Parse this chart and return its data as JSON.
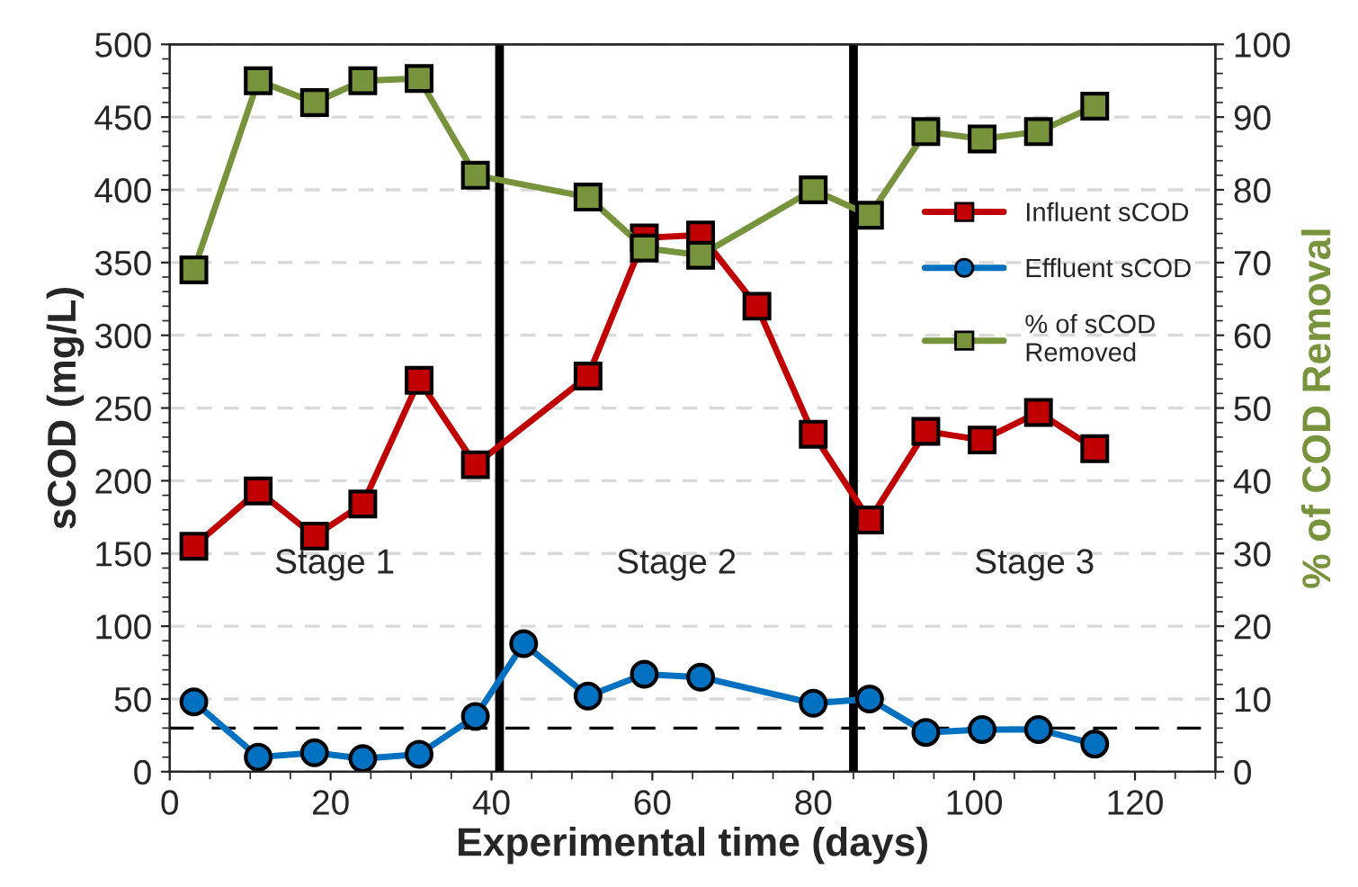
{
  "chart_data": {
    "type": "line",
    "xlabel": "Experimental time (days)",
    "ylabel": "sCOD (mg/L)",
    "y2label": "% of COD Removal",
    "xlim": [
      0,
      130
    ],
    "xticks": [
      0,
      20,
      40,
      60,
      80,
      100,
      120
    ],
    "ylim": [
      0,
      500
    ],
    "yticks": [
      0,
      50,
      100,
      150,
      200,
      250,
      300,
      350,
      400,
      450,
      500
    ],
    "y2lim": [
      0,
      100
    ],
    "y2ticks": [
      0,
      10,
      20,
      30,
      40,
      50,
      60,
      70,
      80,
      90,
      100
    ],
    "grid": "y",
    "legend": "right",
    "line_style": "solid",
    "series": [
      {
        "name": "Influent sCOD",
        "color": "#c00000",
        "marker": "square",
        "x": [
          3,
          11,
          18,
          24,
          31,
          38,
          52,
          59,
          66,
          73,
          80,
          87,
          94,
          101,
          108,
          115
        ],
        "values": [
          155,
          193,
          162,
          184,
          269,
          211,
          272,
          367,
          369,
          320,
          232,
          173,
          234,
          228,
          247,
          222
        ]
      },
      {
        "name": "Effluent sCOD",
        "color": "#0070c0",
        "marker": "circle",
        "x": [
          3,
          11,
          18,
          24,
          31,
          38,
          44,
          52,
          59,
          66,
          80,
          87,
          94,
          101,
          108,
          115
        ],
        "values": [
          48,
          10,
          13,
          9,
          12,
          38,
          88,
          52,
          67,
          65,
          47,
          50,
          27,
          29,
          29,
          19
        ]
      },
      {
        "name": "% of sCOD Removed",
        "color": "#77933c",
        "marker": "square",
        "axis": "y2",
        "x": [
          3,
          11,
          18,
          24,
          31,
          38,
          52,
          59,
          66,
          80,
          87,
          94,
          101,
          108,
          115
        ],
        "values": [
          69,
          95,
          92,
          95,
          95.3,
          82,
          79,
          72,
          71,
          80,
          76.5,
          88,
          87,
          88,
          91.5
        ]
      }
    ],
    "ref_lines": [
      {
        "axis": "y",
        "value": 30,
        "line_style": "dashed",
        "color": "#000000"
      },
      {
        "axis": "x",
        "value": 41,
        "color": "#000000",
        "line_style": "solid"
      },
      {
        "axis": "x",
        "value": 85,
        "color": "#000000",
        "line_style": "solid"
      }
    ],
    "annotations": [
      "Stage 1",
      "Stage 2",
      "Stage 3"
    ]
  }
}
